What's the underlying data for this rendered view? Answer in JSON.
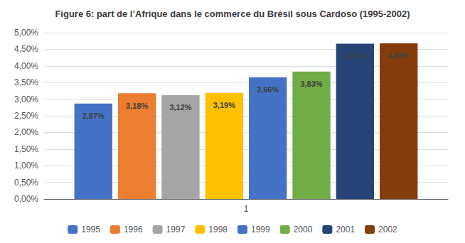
{
  "chart_data": {
    "type": "bar",
    "title": "Figure 6: part de l’Afrique dans le commerce du Brésil sous Cardoso (1995-2002)",
    "categories": [
      "1"
    ],
    "series": [
      {
        "name": "1995",
        "color": "#4472C4",
        "values": [
          2.87
        ],
        "value_labels": [
          "2,87%"
        ]
      },
      {
        "name": "1996",
        "color": "#ED7D31",
        "values": [
          3.18
        ],
        "value_labels": [
          "3,18%"
        ]
      },
      {
        "name": "1997",
        "color": "#A5A5A5",
        "values": [
          3.12
        ],
        "value_labels": [
          "3,12%"
        ]
      },
      {
        "name": "1998",
        "color": "#FFC000",
        "values": [
          3.19
        ],
        "value_labels": [
          "3,19%"
        ]
      },
      {
        "name": "1999",
        "color": "#4472C4",
        "values": [
          3.66
        ],
        "value_labels": [
          "3,66%"
        ]
      },
      {
        "name": "2000",
        "color": "#70AD47",
        "values": [
          3.83
        ],
        "value_labels": [
          "3,83%"
        ]
      },
      {
        "name": "2001",
        "color": "#264478",
        "values": [
          4.67
        ],
        "value_labels": [
          "4,67%"
        ]
      },
      {
        "name": "2002",
        "color": "#843C0C",
        "values": [
          4.68
        ],
        "value_labels": [
          "4,68%"
        ]
      }
    ],
    "ylim": [
      0.0,
      5.0
    ],
    "yticks": [
      {
        "value": 0.0,
        "label": "0,00%"
      },
      {
        "value": 0.5,
        "label": "0,50%"
      },
      {
        "value": 1.0,
        "label": "1,00%"
      },
      {
        "value": 1.5,
        "label": "1,50%"
      },
      {
        "value": 2.0,
        "label": "2,00%"
      },
      {
        "value": 2.5,
        "label": "2,50%"
      },
      {
        "value": 3.0,
        "label": "3,00%"
      },
      {
        "value": 3.5,
        "label": "3,50%"
      },
      {
        "value": 4.0,
        "label": "4,00%"
      },
      {
        "value": 4.5,
        "label": "4,50%"
      },
      {
        "value": 5.0,
        "label": "5,00%"
      }
    ],
    "grid": true,
    "legend": "bottom",
    "data_labels": true
  }
}
